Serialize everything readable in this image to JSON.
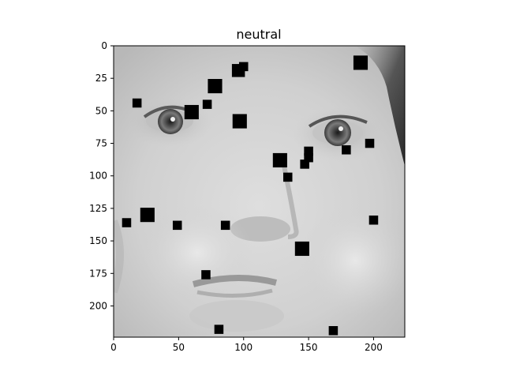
{
  "chart_data": {
    "type": "heatmap",
    "title": "neutral",
    "image_content": "grayscale close-up photograph of a baby's face with black square occlusion patches",
    "xlim": [
      0,
      224
    ],
    "ylim": [
      224,
      0
    ],
    "x_ticks": [
      0,
      50,
      100,
      150,
      200
    ],
    "y_ticks": [
      0,
      25,
      50,
      75,
      100,
      125,
      150,
      175,
      200
    ],
    "colormap": "gray",
    "patches": [
      {
        "x": 190,
        "y": 13,
        "size": 11
      },
      {
        "x": 100,
        "y": 16,
        "size": 7
      },
      {
        "x": 96,
        "y": 19,
        "size": 10
      },
      {
        "x": 78,
        "y": 31,
        "size": 11
      },
      {
        "x": 18,
        "y": 44,
        "size": 7
      },
      {
        "x": 72,
        "y": 45,
        "size": 7
      },
      {
        "x": 60,
        "y": 51,
        "size": 11
      },
      {
        "x": 97,
        "y": 58,
        "size": 11
      },
      {
        "x": 197,
        "y": 75,
        "size": 7
      },
      {
        "x": 150,
        "y": 81,
        "size": 7
      },
      {
        "x": 179,
        "y": 80,
        "size": 7
      },
      {
        "x": 150,
        "y": 86,
        "size": 7
      },
      {
        "x": 128,
        "y": 88,
        "size": 11
      },
      {
        "x": 147,
        "y": 91,
        "size": 7
      },
      {
        "x": 134,
        "y": 101,
        "size": 7
      },
      {
        "x": 26,
        "y": 130,
        "size": 11
      },
      {
        "x": 10,
        "y": 136,
        "size": 7
      },
      {
        "x": 200,
        "y": 134,
        "size": 7
      },
      {
        "x": 49,
        "y": 138,
        "size": 7
      },
      {
        "x": 86,
        "y": 138,
        "size": 7
      },
      {
        "x": 145,
        "y": 156,
        "size": 11
      },
      {
        "x": 71,
        "y": 176,
        "size": 7
      },
      {
        "x": 81,
        "y": 218,
        "size": 7
      },
      {
        "x": 169,
        "y": 219,
        "size": 7
      }
    ]
  }
}
